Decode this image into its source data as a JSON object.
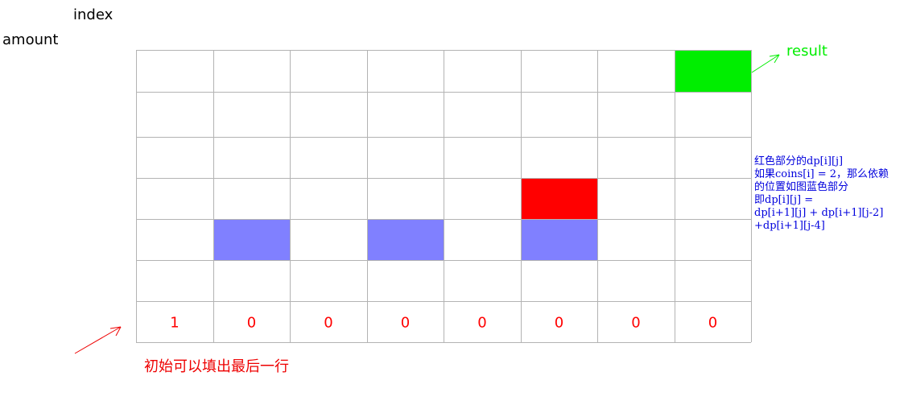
{
  "axes": {
    "column_label": "index",
    "row_label": "amount"
  },
  "grid": {
    "rows": 7,
    "cols": 8,
    "highlights": [
      {
        "role": "result",
        "row": 0,
        "col": 7,
        "color": "#00ee00"
      },
      {
        "role": "current",
        "row": 3,
        "col": 5,
        "color": "#ff0000"
      },
      {
        "role": "dependency",
        "row": 4,
        "col": 1,
        "color": "#8080ff"
      },
      {
        "role": "dependency",
        "row": 4,
        "col": 3,
        "color": "#8080ff"
      },
      {
        "role": "dependency",
        "row": 4,
        "col": 5,
        "color": "#8080ff"
      }
    ],
    "bottom_row_values": [
      "1",
      "0",
      "0",
      "0",
      "0",
      "0",
      "0",
      "0"
    ]
  },
  "annotations": {
    "result": "result",
    "note_lines": [
      "红色部分的dp[i][j]",
      "如果coins[i] = 2，那么依赖",
      "的位置如图蓝色部分",
      "即dp[i][j] =",
      "dp[i+1][j] + dp[i+1][j-2]",
      "+dp[i+1][j-4]"
    ],
    "initial": "初始可以填出最后一行"
  },
  "colors": {
    "result_green": "#00ee00",
    "current_red": "#ff0000",
    "dependency_blue": "#8080ff",
    "grid_line": "#b3b3b3"
  }
}
